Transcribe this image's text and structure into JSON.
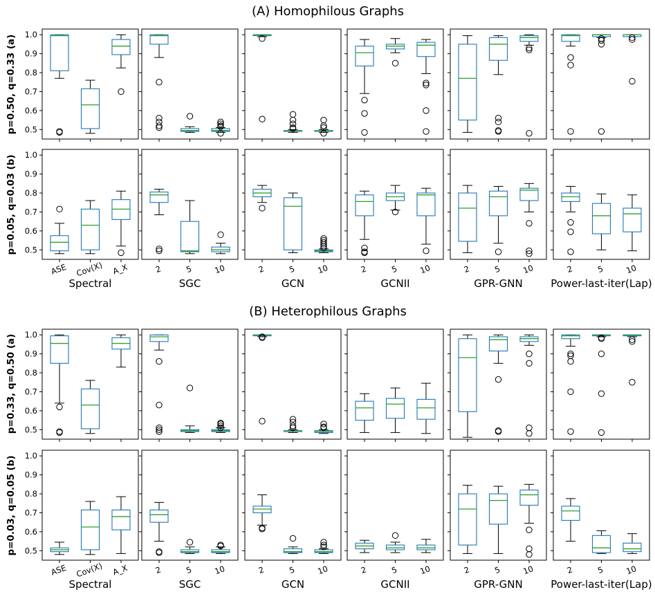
{
  "sections": [
    {
      "title": "(A) Homophilous Graphs",
      "rows": [
        "p=0.50, q=0.33 (a)",
        "p=0.05, q=0.03 (b)"
      ]
    },
    {
      "title": "(B) Heterophilous Graphs",
      "rows": [
        "p=0.33, q=0.50 (a)",
        "p=0.03, q=0.05 (b)"
      ]
    }
  ],
  "chart_data": {
    "type": "box",
    "ylim": [
      0.45,
      1.03
    ],
    "yticks": [
      "0.5",
      "0.6",
      "0.7",
      "0.8",
      "0.9",
      "1.0"
    ],
    "groups": [
      {
        "name": "Spectral",
        "categories": [
          "ASE",
          "Cov(X)",
          "A_X"
        ]
      },
      {
        "name": "SGC",
        "categories": [
          "2",
          "5",
          "10"
        ]
      },
      {
        "name": "GCN",
        "categories": [
          "2",
          "5",
          "10"
        ]
      },
      {
        "name": "GCNII",
        "categories": [
          "2",
          "5",
          "10"
        ]
      },
      {
        "name": "GPR-GNN",
        "categories": [
          "2",
          "5",
          "10"
        ]
      },
      {
        "name": "Power-last-iter(Lap)",
        "categories": [
          "2",
          "5",
          "10"
        ]
      }
    ],
    "panels": [
      [
        [
          {
            "q1": 0.81,
            "median": 0.995,
            "q3": 1.0,
            "lo": 0.77,
            "hi": 1.0,
            "fliers": [
              0.49,
              0.485
            ]
          },
          {
            "q1": 0.505,
            "median": 0.63,
            "q3": 0.715,
            "lo": 0.48,
            "hi": 0.76,
            "fliers": []
          },
          {
            "q1": 0.895,
            "median": 0.94,
            "q3": 0.975,
            "lo": 0.825,
            "hi": 1.0,
            "fliers": [
              0.7
            ]
          }
        ],
        [
          {
            "q1": 0.95,
            "median": 0.995,
            "q3": 1.0,
            "lo": 0.88,
            "hi": 1.0,
            "fliers": [
              0.75,
              0.56,
              0.54,
              0.52,
              0.51
            ]
          },
          {
            "q1": 0.49,
            "median": 0.495,
            "q3": 0.505,
            "lo": 0.485,
            "hi": 0.515,
            "fliers": [
              0.57
            ]
          },
          {
            "q1": 0.49,
            "median": 0.495,
            "q3": 0.505,
            "lo": 0.485,
            "hi": 0.51,
            "fliers": [
              0.54,
              0.53,
              0.52,
              0.515,
              0.48
            ]
          }
        ],
        [
          {
            "q1": 0.995,
            "median": 1.0,
            "q3": 1.0,
            "lo": 0.99,
            "hi": 1.0,
            "fliers": [
              0.98,
              0.555
            ]
          },
          {
            "q1": 0.49,
            "median": 0.49,
            "q3": 0.495,
            "lo": 0.485,
            "hi": 0.5,
            "fliers": [
              0.58,
              0.55,
              0.53,
              0.51,
              0.505
            ]
          },
          {
            "q1": 0.49,
            "median": 0.49,
            "q3": 0.495,
            "lo": 0.485,
            "hi": 0.5,
            "fliers": [
              0.55,
              0.52,
              0.51,
              0.48
            ]
          }
        ],
        [
          {
            "q1": 0.835,
            "median": 0.905,
            "q3": 0.94,
            "lo": 0.69,
            "hi": 0.975,
            "fliers": [
              0.655,
              0.585,
              0.485
            ]
          },
          {
            "q1": 0.925,
            "median": 0.94,
            "q3": 0.95,
            "lo": 0.905,
            "hi": 0.98,
            "fliers": [
              0.85
            ]
          },
          {
            "q1": 0.885,
            "median": 0.945,
            "q3": 0.96,
            "lo": 0.795,
            "hi": 0.975,
            "fliers": [
              0.745,
              0.735,
              0.6,
              0.49
            ]
          }
        ],
        [
          {
            "q1": 0.55,
            "median": 0.77,
            "q3": 0.95,
            "lo": 0.485,
            "hi": 0.995,
            "fliers": []
          },
          {
            "q1": 0.865,
            "median": 0.95,
            "q3": 0.985,
            "lo": 0.79,
            "hi": 0.995,
            "fliers": [
              0.56,
              0.54,
              0.495,
              0.49
            ]
          },
          {
            "q1": 0.965,
            "median": 0.985,
            "q3": 0.995,
            "lo": 0.945,
            "hi": 1.0,
            "fliers": [
              0.93,
              0.92,
              0.48
            ]
          }
        ],
        [
          {
            "q1": 0.965,
            "median": 0.995,
            "q3": 1.0,
            "lo": 0.94,
            "hi": 1.0,
            "fliers": [
              0.88,
              0.84,
              0.49
            ]
          },
          {
            "q1": 0.99,
            "median": 1.0,
            "q3": 1.0,
            "lo": 0.985,
            "hi": 1.0,
            "fliers": [
              0.98,
              0.97,
              0.95,
              0.49
            ]
          },
          {
            "q1": 0.99,
            "median": 1.0,
            "q3": 1.0,
            "lo": 0.99,
            "hi": 1.0,
            "fliers": [
              0.985,
              0.975,
              0.755
            ]
          }
        ]
      ],
      [
        [
          {
            "q1": 0.495,
            "median": 0.54,
            "q3": 0.575,
            "lo": 0.48,
            "hi": 0.64,
            "fliers": [
              0.715
            ]
          },
          {
            "q1": 0.5,
            "median": 0.63,
            "q3": 0.715,
            "lo": 0.48,
            "hi": 0.76,
            "fliers": []
          },
          {
            "q1": 0.66,
            "median": 0.715,
            "q3": 0.765,
            "lo": 0.52,
            "hi": 0.81,
            "fliers": [
              0.485
            ]
          }
        ],
        [
          {
            "q1": 0.75,
            "median": 0.79,
            "q3": 0.805,
            "lo": 0.685,
            "hi": 0.82,
            "fliers": [
              0.505,
              0.495
            ]
          },
          {
            "q1": 0.49,
            "median": 0.495,
            "q3": 0.65,
            "lo": 0.48,
            "hi": 0.76,
            "fliers": []
          },
          {
            "q1": 0.49,
            "median": 0.5,
            "q3": 0.515,
            "lo": 0.48,
            "hi": 0.535,
            "fliers": [
              0.58
            ]
          }
        ],
        [
          {
            "q1": 0.78,
            "median": 0.8,
            "q3": 0.82,
            "lo": 0.75,
            "hi": 0.84,
            "fliers": [
              0.72
            ]
          },
          {
            "q1": 0.5,
            "median": 0.73,
            "q3": 0.775,
            "lo": 0.485,
            "hi": 0.8,
            "fliers": []
          },
          {
            "q1": 0.49,
            "median": 0.495,
            "q3": 0.5,
            "lo": 0.485,
            "hi": 0.505,
            "fliers": [
              0.56,
              0.55,
              0.54,
              0.53,
              0.52,
              0.51
            ]
          }
        ],
        [
          {
            "q1": 0.68,
            "median": 0.755,
            "q3": 0.79,
            "lo": 0.555,
            "hi": 0.81,
            "fliers": [
              0.51,
              0.49,
              0.485
            ]
          },
          {
            "q1": 0.76,
            "median": 0.78,
            "q3": 0.8,
            "lo": 0.71,
            "hi": 0.84,
            "fliers": [
              0.7
            ]
          },
          {
            "q1": 0.68,
            "median": 0.79,
            "q3": 0.8,
            "lo": 0.53,
            "hi": 0.825,
            "fliers": [
              0.495
            ]
          }
        ],
        [
          {
            "q1": 0.545,
            "median": 0.72,
            "q3": 0.8,
            "lo": 0.485,
            "hi": 0.84,
            "fliers": []
          },
          {
            "q1": 0.68,
            "median": 0.78,
            "q3": 0.81,
            "lo": 0.535,
            "hi": 0.835,
            "fliers": [
              0.49
            ]
          },
          {
            "q1": 0.76,
            "median": 0.815,
            "q3": 0.825,
            "lo": 0.7,
            "hi": 0.85,
            "fliers": [
              0.64,
              0.495,
              0.48
            ]
          }
        ],
        [
          {
            "q1": 0.755,
            "median": 0.78,
            "q3": 0.8,
            "lo": 0.7,
            "hi": 0.835,
            "fliers": [
              0.645,
              0.595,
              0.49
            ]
          },
          {
            "q1": 0.585,
            "median": 0.68,
            "q3": 0.745,
            "lo": 0.5,
            "hi": 0.795,
            "fliers": []
          },
          {
            "q1": 0.595,
            "median": 0.69,
            "q3": 0.72,
            "lo": 0.495,
            "hi": 0.79,
            "fliers": []
          }
        ]
      ],
      [
        [
          {
            "q1": 0.85,
            "median": 0.955,
            "q3": 0.995,
            "lo": 0.64,
            "hi": 1.0,
            "fliers": [
              0.62,
              0.49,
              0.485
            ]
          },
          {
            "q1": 0.505,
            "median": 0.63,
            "q3": 0.715,
            "lo": 0.48,
            "hi": 0.76,
            "fliers": []
          },
          {
            "q1": 0.925,
            "median": 0.955,
            "q3": 0.985,
            "lo": 0.83,
            "hi": 1.0,
            "fliers": []
          }
        ],
        [
          {
            "q1": 0.965,
            "median": 0.99,
            "q3": 1.0,
            "lo": 0.92,
            "hi": 1.0,
            "fliers": [
              0.86,
              0.63,
              0.51,
              0.5,
              0.49
            ]
          },
          {
            "q1": 0.49,
            "median": 0.495,
            "q3": 0.5,
            "lo": 0.485,
            "hi": 0.52,
            "fliers": [
              0.72
            ]
          },
          {
            "q1": 0.49,
            "median": 0.495,
            "q3": 0.5,
            "lo": 0.485,
            "hi": 0.51,
            "fliers": [
              0.535,
              0.53,
              0.52,
              0.51
            ]
          }
        ],
        [
          {
            "q1": 0.995,
            "median": 1.0,
            "q3": 1.0,
            "lo": 0.99,
            "hi": 1.0,
            "fliers": [
              0.99,
              0.985,
              0.545
            ]
          },
          {
            "q1": 0.49,
            "median": 0.49,
            "q3": 0.495,
            "lo": 0.485,
            "hi": 0.5,
            "fliers": [
              0.555,
              0.54,
              0.52,
              0.51
            ]
          },
          {
            "q1": 0.485,
            "median": 0.49,
            "q3": 0.495,
            "lo": 0.48,
            "hi": 0.5,
            "fliers": [
              0.53,
              0.515,
              0.51
            ]
          }
        ],
        [
          {
            "q1": 0.55,
            "median": 0.615,
            "q3": 0.65,
            "lo": 0.485,
            "hi": 0.69,
            "fliers": []
          },
          {
            "q1": 0.56,
            "median": 0.635,
            "q3": 0.665,
            "lo": 0.485,
            "hi": 0.72,
            "fliers": []
          },
          {
            "q1": 0.555,
            "median": 0.615,
            "q3": 0.66,
            "lo": 0.48,
            "hi": 0.745,
            "fliers": []
          }
        ],
        [
          {
            "q1": 0.595,
            "median": 0.88,
            "q3": 0.98,
            "lo": 0.46,
            "hi": 1.0,
            "fliers": []
          },
          {
            "q1": 0.915,
            "median": 0.975,
            "q3": 0.99,
            "lo": 0.85,
            "hi": 1.0,
            "fliers": [
              0.765,
              0.495,
              0.49
            ]
          },
          {
            "q1": 0.965,
            "median": 0.98,
            "q3": 0.99,
            "lo": 0.945,
            "hi": 1.0,
            "fliers": [
              0.9,
              0.85,
              0.51,
              0.48
            ]
          }
        ],
        [
          {
            "q1": 0.98,
            "median": 0.995,
            "q3": 1.0,
            "lo": 0.94,
            "hi": 1.0,
            "fliers": [
              0.9,
              0.89,
              0.86,
              0.7,
              0.49
            ]
          },
          {
            "q1": 0.995,
            "median": 1.0,
            "q3": 1.0,
            "lo": 0.99,
            "hi": 1.0,
            "fliers": [
              0.985,
              0.98,
              0.9,
              0.69,
              0.485
            ]
          },
          {
            "q1": 0.995,
            "median": 1.0,
            "q3": 1.0,
            "lo": 0.99,
            "hi": 1.0,
            "fliers": [
              0.975,
              0.965,
              0.75
            ]
          }
        ]
      ],
      [
        [
          {
            "q1": 0.495,
            "median": 0.505,
            "q3": 0.515,
            "lo": 0.48,
            "hi": 0.545,
            "fliers": []
          },
          {
            "q1": 0.505,
            "median": 0.625,
            "q3": 0.715,
            "lo": 0.48,
            "hi": 0.76,
            "fliers": []
          },
          {
            "q1": 0.61,
            "median": 0.68,
            "q3": 0.715,
            "lo": 0.485,
            "hi": 0.785,
            "fliers": []
          }
        ],
        [
          {
            "q1": 0.65,
            "median": 0.69,
            "q3": 0.715,
            "lo": 0.55,
            "hi": 0.755,
            "fliers": [
              0.495,
              0.49
            ]
          },
          {
            "q1": 0.49,
            "median": 0.495,
            "q3": 0.505,
            "lo": 0.485,
            "hi": 0.52,
            "fliers": [
              0.545
            ]
          },
          {
            "q1": 0.49,
            "median": 0.495,
            "q3": 0.505,
            "lo": 0.485,
            "hi": 0.52,
            "fliers": [
              0.53,
              0.525
            ]
          }
        ],
        [
          {
            "q1": 0.7,
            "median": 0.72,
            "q3": 0.735,
            "lo": 0.635,
            "hi": 0.795,
            "fliers": [
              0.62,
              0.615
            ]
          },
          {
            "q1": 0.49,
            "median": 0.495,
            "q3": 0.51,
            "lo": 0.485,
            "hi": 0.52,
            "fliers": [
              0.565
            ]
          },
          {
            "q1": 0.49,
            "median": 0.495,
            "q3": 0.505,
            "lo": 0.485,
            "hi": 0.51,
            "fliers": [
              0.545,
              0.53,
              0.52
            ]
          }
        ],
        [
          {
            "q1": 0.51,
            "median": 0.525,
            "q3": 0.54,
            "lo": 0.49,
            "hi": 0.555,
            "fliers": []
          },
          {
            "q1": 0.505,
            "median": 0.515,
            "q3": 0.53,
            "lo": 0.49,
            "hi": 0.545,
            "fliers": [
              0.58
            ]
          },
          {
            "q1": 0.505,
            "median": 0.515,
            "q3": 0.53,
            "lo": 0.49,
            "hi": 0.56,
            "fliers": []
          }
        ],
        [
          {
            "q1": 0.53,
            "median": 0.72,
            "q3": 0.8,
            "lo": 0.485,
            "hi": 0.845,
            "fliers": []
          },
          {
            "q1": 0.64,
            "median": 0.765,
            "q3": 0.8,
            "lo": 0.485,
            "hi": 0.84,
            "fliers": []
          },
          {
            "q1": 0.74,
            "median": 0.795,
            "q3": 0.82,
            "lo": 0.645,
            "hi": 0.85,
            "fliers": [
              0.61,
              0.51,
              0.48
            ]
          }
        ],
        [
          {
            "q1": 0.66,
            "median": 0.71,
            "q3": 0.735,
            "lo": 0.55,
            "hi": 0.775,
            "fliers": []
          },
          {
            "q1": 0.49,
            "median": 0.515,
            "q3": 0.58,
            "lo": 0.485,
            "hi": 0.605,
            "fliers": []
          },
          {
            "q1": 0.495,
            "median": 0.51,
            "q3": 0.54,
            "lo": 0.485,
            "hi": 0.59,
            "fliers": []
          }
        ]
      ]
    ]
  }
}
